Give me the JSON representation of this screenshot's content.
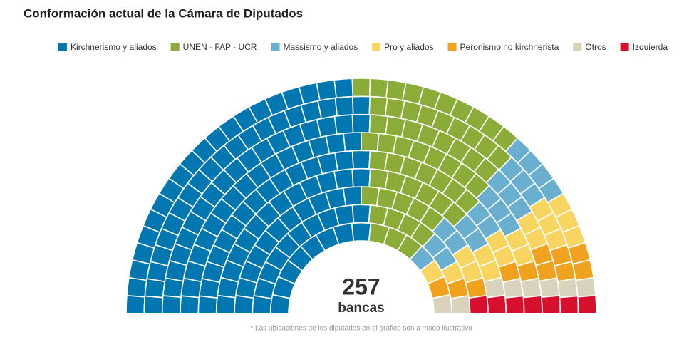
{
  "chart_data": {
    "type": "parliament",
    "title": "Conformación actual de la Cámara de Diputados",
    "total": 257,
    "total_label": "bancas",
    "footnote": "* Las ubicaciones de los diputados en el gráfico son a modo ilustrativo",
    "series": [
      {
        "name": "Kirchnerismo y aliados",
        "color": "#0077b0",
        "values": [
          131
        ]
      },
      {
        "name": "UNEN - FAP - UCR",
        "color": "#8cac3a",
        "values": [
          60
        ]
      },
      {
        "name": "Massismo y aliados",
        "color": "#6aafcf",
        "values": [
          22
        ]
      },
      {
        "name": "Pro y aliados",
        "color": "#f7d560",
        "values": [
          18
        ]
      },
      {
        "name": "Peronismo no kirchnerista",
        "color": "#f0a21e",
        "values": [
          11
        ]
      },
      {
        "name": "Otros",
        "color": "#d9d3bd",
        "values": [
          8
        ]
      },
      {
        "name": "Izquierda",
        "color": "#d8102e",
        "values": [
          7
        ]
      }
    ]
  }
}
